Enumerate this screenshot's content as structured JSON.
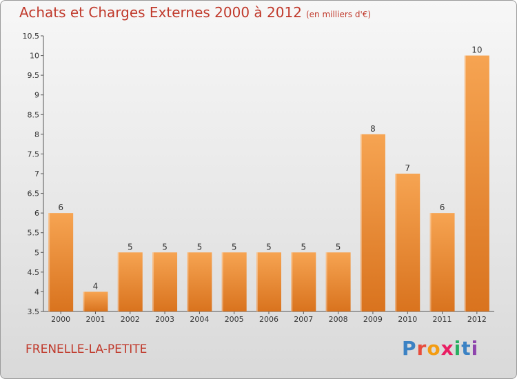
{
  "chart_data": {
    "type": "bar",
    "title": "Achats et Charges Externes 2000 à 2012",
    "subtitle": "(en milliers d'€)",
    "categories": [
      "2000",
      "2001",
      "2002",
      "2003",
      "2004",
      "2005",
      "2006",
      "2007",
      "2008",
      "2009",
      "2010",
      "2011",
      "2012"
    ],
    "values": [
      6,
      4,
      5,
      5,
      5,
      5,
      5,
      5,
      5,
      8,
      7,
      6,
      10
    ],
    "ylim": [
      3.5,
      10.5
    ],
    "yticks": [
      "3.5",
      "4",
      "4.5",
      "5",
      "5.5",
      "6",
      "6.5",
      "7",
      "7.5",
      "8",
      "8.5",
      "9",
      "9.5",
      "10",
      "10.5"
    ],
    "grid": false,
    "colors": {
      "bar_top": "#f6a452",
      "bar_bottom": "#d9731e",
      "title": "#c0392b"
    }
  },
  "commune": "FRENELLE-LA-PETITE",
  "logo": {
    "letters": [
      "P",
      "r",
      "o",
      "x",
      "i",
      "t",
      "i"
    ],
    "colors": [
      "#3b82c4",
      "#e74c3c",
      "#f39c12",
      "#e91e63",
      "#27ae60",
      "#3b82c4",
      "#8e44ad"
    ]
  }
}
